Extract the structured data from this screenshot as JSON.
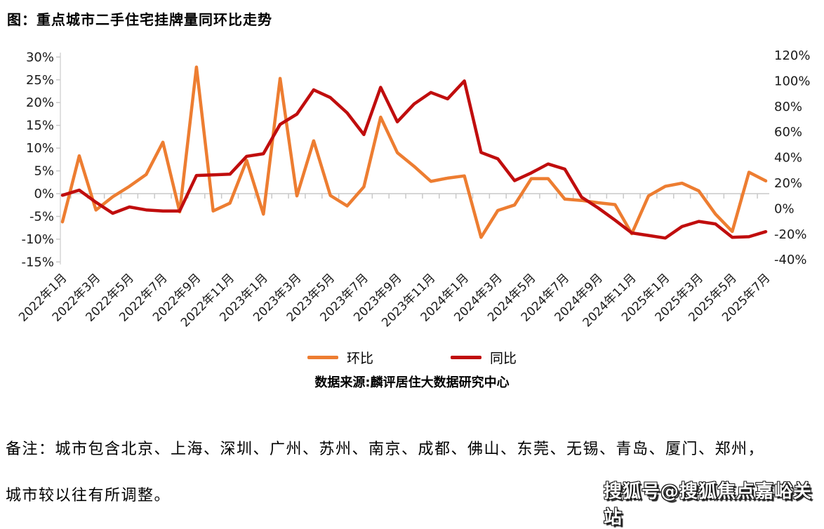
{
  "title": "图：重点城市二手住宅挂牌量同环比走势",
  "source": "数据来源:麟评居住大数据研究中心",
  "note_line1": "备注：城市包含北京、上海、深圳、广州、苏州、南京、成都、佛山、东莞、无锡、青岛、厦门、郑州，",
  "note_line2": "城市较以往有所调整。",
  "watermark": "搜狐号@搜狐焦点嘉峪关站",
  "colors": {
    "mom_line": "#ED7D31",
    "yoy_line": "#C00D0D",
    "axis_gray": "#D6D6D6",
    "tick_gray": "#C9C9C9",
    "label_black": "#1a1a1a"
  },
  "chart_data": {
    "type": "line",
    "x": [
      "2022年1月",
      "2022年2月",
      "2022年3月",
      "2022年4月",
      "2022年5月",
      "2022年6月",
      "2022年7月",
      "2022年8月",
      "2022年9月",
      "2022年10月",
      "2022年11月",
      "2022年12月",
      "2023年1月",
      "2023年2月",
      "2023年3月",
      "2023年4月",
      "2023年5月",
      "2023年6月",
      "2023年7月",
      "2023年8月",
      "2023年9月",
      "2023年10月",
      "2023年11月",
      "2023年12月",
      "2024年1月",
      "2024年2月",
      "2024年3月",
      "2024年4月",
      "2024年5月",
      "2024年6月",
      "2024年7月",
      "2024年8月",
      "2024年9月",
      "2024年10月",
      "2024年11月",
      "2024年12月",
      "2025年1月",
      "2025年2月",
      "2025年3月",
      "2025年4月",
      "2025年5月",
      "2025年6月",
      "2025年7月"
    ],
    "x_tick_labels": [
      "2022年1月",
      "2022年3月",
      "2022年5月",
      "2022年7月",
      "2022年9月",
      "2022年11月",
      "2023年1月",
      "2023年3月",
      "2023年5月",
      "2023年7月",
      "2023年9月",
      "2023年11月",
      "2024年1月",
      "2024年3月",
      "2024年5月",
      "2024年7月",
      "2024年9月",
      "2024年11月",
      "2025年1月",
      "2025年3月",
      "2025年5月",
      "2025年7月"
    ],
    "series": [
      {
        "name": "环比",
        "axis": "left",
        "color": "#ED7D31",
        "values": [
          -6.2,
          8.3,
          -3.6,
          -0.7,
          1.6,
          4.2,
          11.3,
          -4.0,
          27.8,
          -3.8,
          -2.1,
          7.3,
          -4.5,
          25.3,
          -0.5,
          11.6,
          -0.4,
          -2.7,
          1.5,
          16.8,
          9.0,
          6.0,
          2.7,
          3.4,
          3.9,
          -9.6,
          -3.7,
          -2.5,
          3.3,
          3.3,
          -1.2,
          -1.5,
          -2.0,
          -2.4,
          -8.8,
          -0.5,
          1.6,
          2.3,
          0.6,
          -4.5,
          -8.3,
          4.7,
          2.8
        ]
      },
      {
        "name": "同比",
        "axis": "right",
        "color": "#C00D0D",
        "values": [
          10.5,
          14.5,
          5.0,
          -3.6,
          1.3,
          -1.0,
          -1.8,
          -1.8,
          26.0,
          26.5,
          27.0,
          41.0,
          43.0,
          66.0,
          74.0,
          93.0,
          87.0,
          75.0,
          58.0,
          95.0,
          68.0,
          82.0,
          91.0,
          86.0,
          100.0,
          44.0,
          39.0,
          22.0,
          28.0,
          35.0,
          31.0,
          9.0,
          0.5,
          -9.0,
          -19.0,
          -21.0,
          -23.0,
          -14.0,
          -10.0,
          -12.0,
          -22.5,
          -22.0,
          -18.0
        ]
      }
    ],
    "left_axis": {
      "min": -15,
      "max": 30,
      "step": 5,
      "unit": "%"
    },
    "right_axis": {
      "min": -40,
      "max": 120,
      "step": 20,
      "unit": "%"
    },
    "grid": "zero-line-only",
    "legend_position": "bottom"
  }
}
